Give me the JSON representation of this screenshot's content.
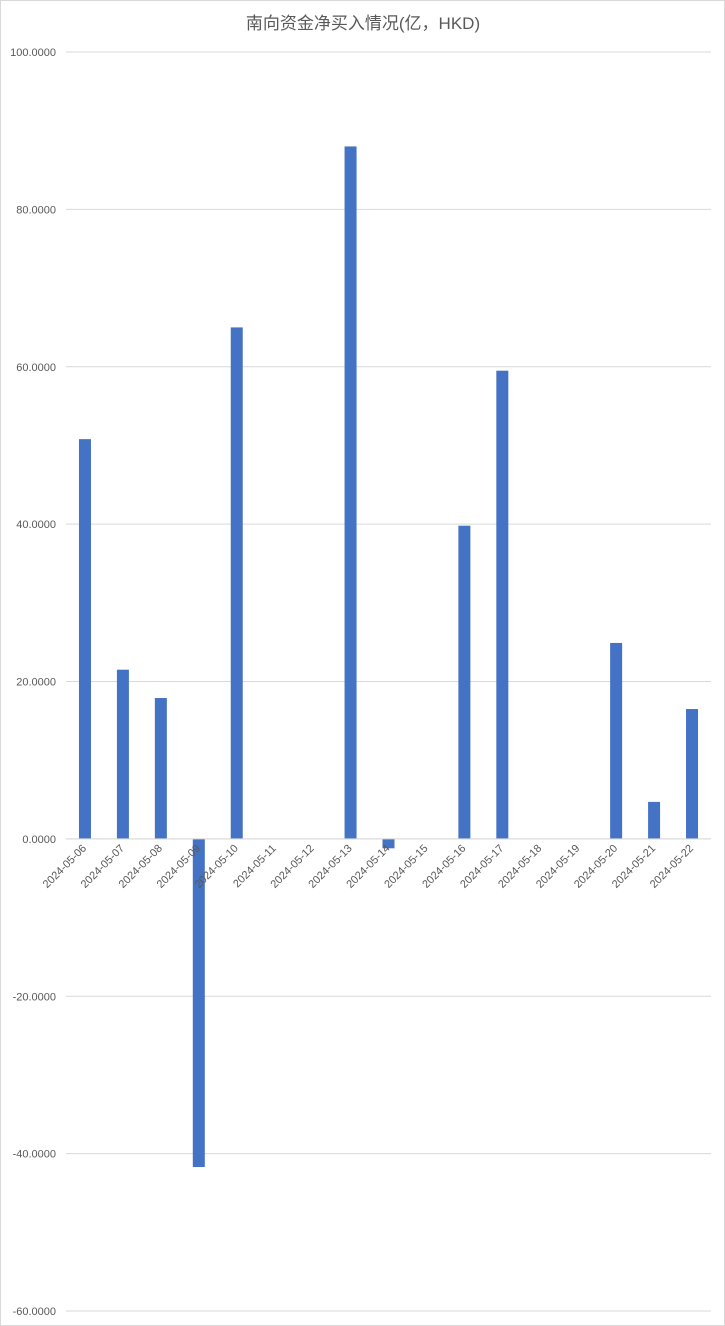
{
  "chart_data": {
    "type": "bar",
    "title": "南向资金净买入情况(亿，HKD)",
    "xlabel": "",
    "ylabel": "",
    "ylim": [
      -60,
      100
    ],
    "yticks": [
      "100.0000",
      "80.0000",
      "60.0000",
      "40.0000",
      "20.0000",
      "0.0000",
      "-20.0000",
      "-40.0000",
      "-60.0000"
    ],
    "ytick_values": [
      100,
      80,
      60,
      40,
      20,
      0,
      -20,
      -40,
      -60
    ],
    "grid": true,
    "legend": "none",
    "bar_color": "#4472c4",
    "categories": [
      "2024-05-06",
      "2024-05-07",
      "2024-05-08",
      "2024-05-09",
      "2024-05-10",
      "2024-05-11",
      "2024-05-12",
      "2024-05-13",
      "2024-05-14",
      "2024-05-15",
      "2024-05-16",
      "2024-05-17",
      "2024-05-18",
      "2024-05-19",
      "2024-05-20",
      "2024-05-21",
      "2024-05-22"
    ],
    "values": [
      50.8,
      21.5,
      17.9,
      -41.7,
      65.0,
      0,
      0,
      88.0,
      -1.2,
      0,
      39.8,
      59.5,
      0,
      0,
      24.9,
      4.7,
      16.5
    ]
  }
}
